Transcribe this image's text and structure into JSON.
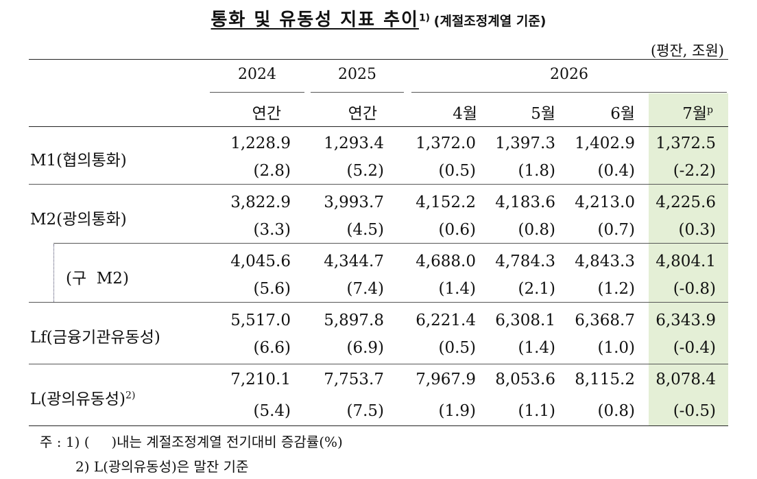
{
  "title": {
    "main": "통화 및 유동성 지표 추이",
    "main_sup": "1)",
    "sub": "(계절조정계열 기준)"
  },
  "unit": "(평잔, 조원)",
  "header": {
    "years": [
      "2024",
      "2025",
      "2026"
    ],
    "cols": [
      "연간",
      "연간",
      "4월",
      "5월",
      "6월",
      "7월"
    ],
    "last_col_sup": "p"
  },
  "rows": [
    {
      "label": "M1(협의통화)",
      "sup": "",
      "values": [
        "1,228.9",
        "1,293.4",
        "1,372.0",
        "1,397.3",
        "1,402.9",
        "1,372.5"
      ],
      "growth": [
        "(2.8)",
        "(5.2)",
        "(0.5)",
        "(1.8)",
        "(0.4)",
        "(-2.2)"
      ]
    },
    {
      "label": "M2(광의통화)",
      "sup": "",
      "values": [
        "3,822.9",
        "3,993.7",
        "4,152.2",
        "4,183.6",
        "4,213.0",
        "4,225.6"
      ],
      "growth": [
        "(3.3)",
        "(4.5)",
        "(0.6)",
        "(0.8)",
        "(0.7)",
        "(0.3)"
      ]
    },
    {
      "label": "(구  M2)",
      "sup": "",
      "values": [
        "4,045.6",
        "4,344.7",
        "4,688.0",
        "4,784.3",
        "4,843.3",
        "4,804.1"
      ],
      "growth": [
        "(5.6)",
        "(7.4)",
        "(1.4)",
        "(2.1)",
        "(1.2)",
        "(-0.8)"
      ]
    },
    {
      "label": "Lf(금융기관유동성)",
      "sup": "",
      "values": [
        "5,517.0",
        "5,897.8",
        "6,221.4",
        "6,308.1",
        "6,368.7",
        "6,343.9"
      ],
      "growth": [
        "(6.6)",
        "(6.9)",
        "(0.5)",
        "(1.4)",
        "(1.0)",
        "(-0.4)"
      ]
    },
    {
      "label": "L(광의유동성)",
      "sup": "2)",
      "values": [
        "7,210.1",
        "7,753.7",
        "7,967.9",
        "8,053.6",
        "8,115.2",
        "8,078.4"
      ],
      "growth": [
        "(5.4)",
        "(7.5)",
        "(1.9)",
        "(1.1)",
        "(0.8)",
        "(-0.5)"
      ]
    }
  ],
  "notes": [
    "주 : 1) (     )내는 계절조정계열 전기대비 증감률(%)",
    "2) L(광의유동성)은 말잔 기준"
  ],
  "colors": {
    "highlight": "#e4efd6"
  }
}
